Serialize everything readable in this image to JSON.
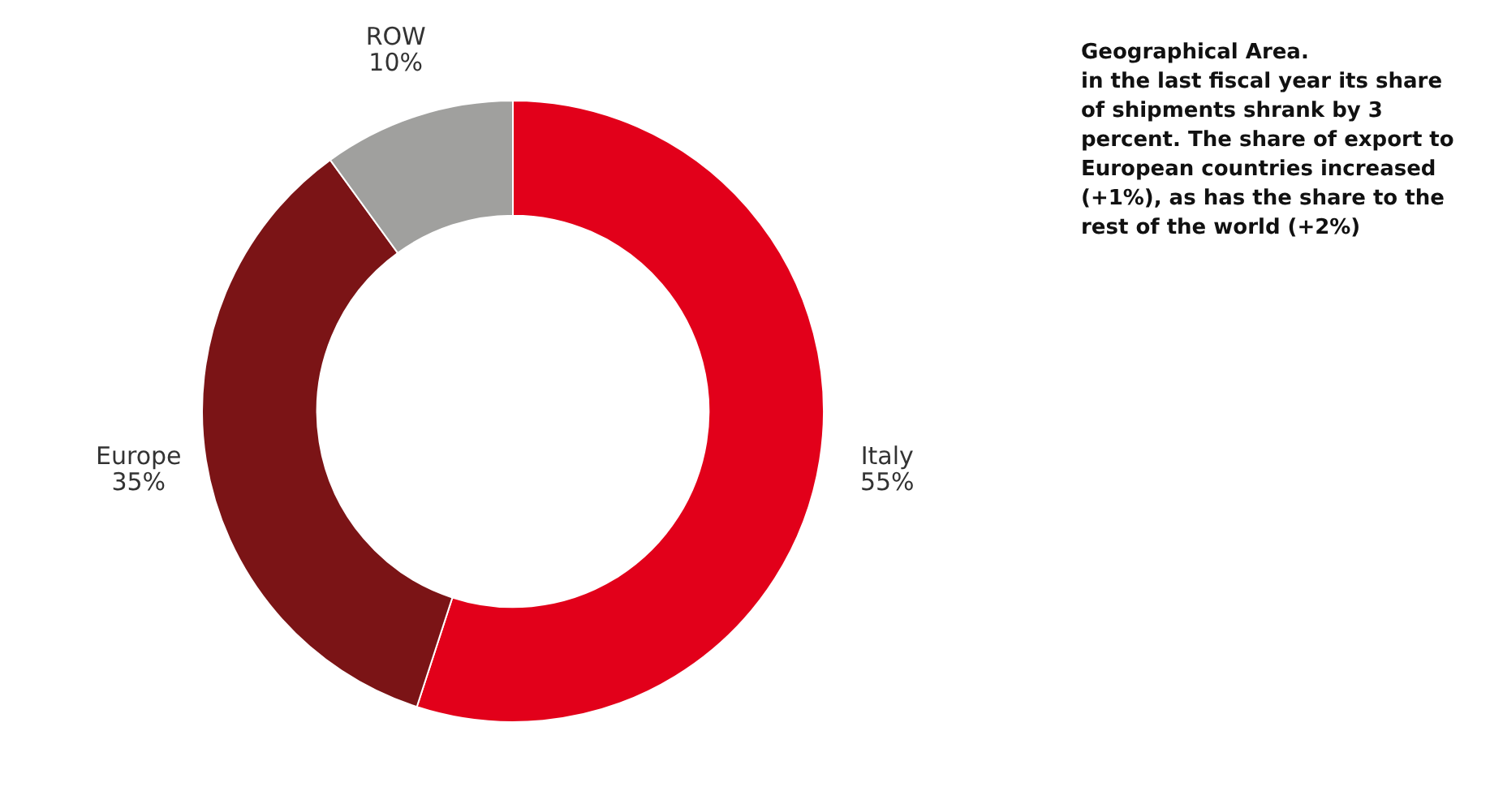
{
  "chart_data": {
    "type": "donut",
    "title": "Geographical Area.",
    "categories": [
      "Italy",
      "Europe",
      "ROW"
    ],
    "values": [
      55,
      35,
      10
    ],
    "value_labels": [
      "55%",
      "35%",
      "10%"
    ],
    "colors": [
      "#e2001a",
      "#7b1416",
      "#a0a09e"
    ],
    "legend": false,
    "annotations": [
      "in the last fiscal year its share of shipments shrank by 3 percent. The share of export to European countries increased (+1%), as has the share to the rest of the world (+2%)"
    ]
  }
}
